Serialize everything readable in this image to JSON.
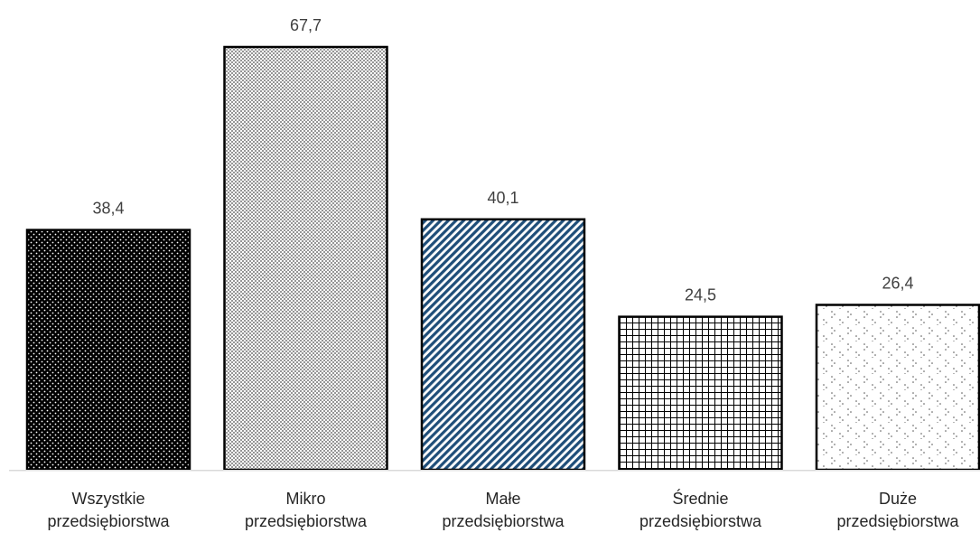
{
  "chart_data": {
    "type": "bar",
    "title": "",
    "xlabel": "",
    "ylabel": "",
    "ylim": [
      0,
      67.7
    ],
    "grid": false,
    "legend": "none",
    "categories": [
      [
        "Wszystkie",
        "przedsiębiorstwa"
      ],
      [
        "Mikro",
        "przedsiębiorstwa"
      ],
      [
        "Małe",
        "przedsiębiorstwa"
      ],
      [
        "Średnie",
        "przedsiębiorstwa"
      ],
      [
        "Duże",
        "przedsiębiorstwa"
      ]
    ],
    "values": [
      38.4,
      67.7,
      40.1,
      24.5,
      26.4
    ],
    "value_labels": [
      "38,4",
      "67,7",
      "40,1",
      "24,5",
      "26,4"
    ],
    "fill_patterns": [
      "white-dots-on-black",
      "fine-gray-dots",
      "blue-diagonal-stripes",
      "black-grid",
      "sparse-dots-on-white"
    ],
    "colors": {
      "bar_outline": "#000000",
      "blue_stripe": "#1f4e79",
      "gray_dots": "#8c8c8c",
      "axis": "#d9d9d9",
      "value_text": "#404040",
      "category_text": "#262626"
    }
  }
}
